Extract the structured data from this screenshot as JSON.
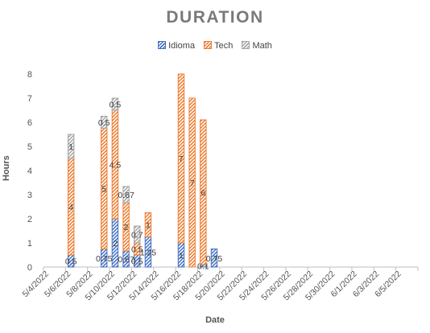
{
  "chart_data": {
    "type": "bar",
    "stacked": true,
    "title": "DURATION",
    "xlabel": "Date",
    "ylabel": "Hours",
    "ylim": [
      0,
      8
    ],
    "yticks": [
      0,
      1,
      2,
      3,
      4,
      5,
      6,
      7,
      8
    ],
    "grid": false,
    "legend_position": "top",
    "dates": [
      "5/4/2022",
      "5/5/2022",
      "5/6/2022",
      "5/7/2022",
      "5/8/2022",
      "5/9/2022",
      "5/10/2022",
      "5/11/2022",
      "5/12/2022",
      "5/13/2022",
      "5/14/2022",
      "5/15/2022",
      "5/16/2022",
      "5/17/2022",
      "5/18/2022",
      "5/19/2022",
      "5/20/2022",
      "5/21/2022",
      "5/22/2022",
      "5/23/2022",
      "5/24/2022",
      "5/25/2022",
      "5/26/2022",
      "5/27/2022",
      "5/28/2022",
      "5/29/2022",
      "5/30/2022",
      "5/31/2022",
      "6/1/2022",
      "6/2/2022",
      "6/3/2022",
      "6/4/2022",
      "6/5/2022",
      "6/6/2022"
    ],
    "tick_labels": [
      "5/4/2022",
      "5/6/2022",
      "5/8/2022",
      "5/10/2022",
      "5/12/2022",
      "5/14/2022",
      "5/16/2022",
      "5/18/2022",
      "5/20/2022",
      "5/22/2022",
      "5/24/2022",
      "5/26/2022",
      "5/28/2022",
      "5/30/2022",
      "6/1/2022",
      "6/3/2022",
      "6/5/2022"
    ],
    "series": [
      {
        "name": "Idioma",
        "color": "#4472c4",
        "labels": {
          "5/6/2022": "0.5",
          "5/9/2022": "0.75",
          "5/10/2022": "2",
          "5/11/2022": "0.67",
          "5/12/2022": "0.5",
          "5/13/2022": "1.25",
          "5/16/2022": "1",
          "5/18/2022": "0.1",
          "5/19/2022": "0.75"
        },
        "values": {
          "5/6/2022": 0.5,
          "5/9/2022": 0.75,
          "5/10/2022": 2,
          "5/11/2022": 0.67,
          "5/12/2022": 0.5,
          "5/13/2022": 1.25,
          "5/16/2022": 1,
          "5/18/2022": 0.1,
          "5/19/2022": 0.75
        }
      },
      {
        "name": "Tech",
        "color": "#ed7d31",
        "labels": {
          "5/6/2022": "4",
          "5/9/2022": "5",
          "5/10/2022": "4.5",
          "5/11/2022": "2",
          "5/12/2022": "0.5",
          "5/13/2022": "1",
          "5/16/2022": "7",
          "5/17/2022": "7",
          "5/18/2022": "6"
        },
        "values": {
          "5/6/2022": 4,
          "5/9/2022": 5,
          "5/10/2022": 4.5,
          "5/11/2022": 2,
          "5/12/2022": 0.5,
          "5/13/2022": 1,
          "5/16/2022": 7,
          "5/17/2022": 7,
          "5/18/2022": 6
        }
      },
      {
        "name": "Math",
        "color": "#a5a5a5",
        "labels": {
          "5/6/2022": "1",
          "5/9/2022": "0.5",
          "5/10/2022": "0.5",
          "5/11/2022": "0.67",
          "5/12/2022": "0.7"
        },
        "values": {
          "5/6/2022": 1,
          "5/9/2022": 0.5,
          "5/10/2022": 0.5,
          "5/11/2022": 0.67,
          "5/12/2022": 0.7
        }
      }
    ]
  }
}
